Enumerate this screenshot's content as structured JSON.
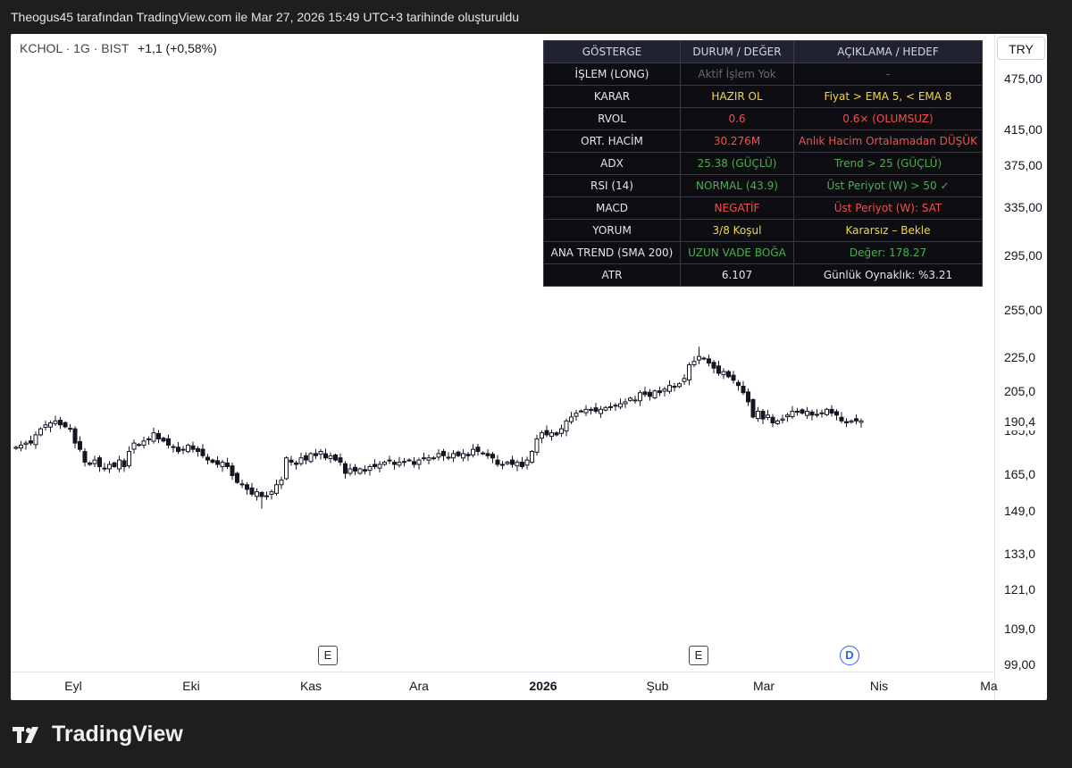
{
  "header": {
    "caption": "Theogus45 tarafından TradingView.com ile Mar 27, 2026 15:49 UTC+3 tarihinde oluşturuldu"
  },
  "symbol": {
    "name": "KCHOL · 1G · BIST",
    "change": "+1,1 (+0,58%)"
  },
  "currency": "TRY",
  "price_axis": [
    "475,00",
    "415,00",
    "375,00",
    "335,00",
    "295,00",
    "255,00",
    "225,0",
    "205,0",
    "185,0",
    "165,0",
    "149,0",
    "133,0",
    "121,0",
    "109,0",
    "99,00"
  ],
  "last_price": "190,4",
  "time_axis": [
    {
      "label": "Eyl",
      "bold": false
    },
    {
      "label": "Eki",
      "bold": false
    },
    {
      "label": "Kas",
      "bold": false
    },
    {
      "label": "Ara",
      "bold": false
    },
    {
      "label": "2026",
      "bold": true
    },
    {
      "label": "Şub",
      "bold": false
    },
    {
      "label": "Mar",
      "bold": false
    },
    {
      "label": "Nis",
      "bold": false
    },
    {
      "label": "Ma",
      "bold": false
    }
  ],
  "event_markers": [
    {
      "type": "earnings",
      "letter": "E"
    },
    {
      "type": "earnings",
      "letter": "E"
    },
    {
      "type": "dividend",
      "letter": "D"
    }
  ],
  "indicator_table": {
    "headers": [
      "GÖSTERGE",
      "DURUM / DEĞER",
      "AÇIKLAMA / HEDEF"
    ],
    "rows": [
      {
        "label": "İŞLEM (LONG)",
        "value": "Aktif İşlem Yok",
        "value_color": "#6b6b6b",
        "note": "-",
        "note_color": "#6b6b6b"
      },
      {
        "label": "KARAR",
        "value": "HAZIR OL",
        "value_color": "#f5d742",
        "note": "Fiyat > EMA 5, < EMA 8",
        "note_color": "#f5d742"
      },
      {
        "label": "RVOL",
        "value": "0.6",
        "value_color": "#f0524f",
        "note": "0.6× (OLUMSUZ)",
        "note_color": "#f0524f"
      },
      {
        "label": "ORT. HACİM",
        "value": "30.276M",
        "value_color": "#f0524f",
        "note": "Anlık Hacim Ortalamadan DÜŞÜK",
        "note_color": "#f0524f"
      },
      {
        "label": "ADX",
        "value": "25.38 (GÜÇLÜ)",
        "value_color": "#4caf50",
        "note": "Trend > 25 (GÜÇLÜ)",
        "note_color": "#4caf50"
      },
      {
        "label": "RSI (14)",
        "value": "NORMAL (43.9)",
        "value_color": "#4caf50",
        "note": "Üst Periyot (W) > 50 ✓",
        "note_color": "#4caf50"
      },
      {
        "label": "MACD",
        "value": "NEGATİF",
        "value_color": "#f0524f",
        "note": "Üst Periyot (W): SAT",
        "note_color": "#f0524f"
      },
      {
        "label": "YORUM",
        "value": "3/8 Koşul",
        "value_color": "#f5d742",
        "note": "Kararsız – Bekle",
        "note_color": "#f5d742"
      },
      {
        "label": "ANA TREND (SMA 200)",
        "value": "UZUN VADE BOĞA",
        "value_color": "#4caf50",
        "note": "Değer: 178.27",
        "note_color": "#4caf50"
      },
      {
        "label": "ATR",
        "value": "6.107",
        "value_color": "#e6e6e6",
        "note": "Günlük Oynaklık: %3.21",
        "note_color": "#e6e6e6"
      }
    ]
  },
  "chart_data": {
    "type": "candlestick",
    "symbol": "KCHOL",
    "interval": "1G",
    "exchange": "BIST",
    "y_scale": "log",
    "close": [
      177,
      178,
      179,
      179,
      183,
      186,
      188,
      189,
      190,
      188,
      187,
      186,
      179,
      176,
      170,
      169,
      171,
      168,
      167,
      169,
      168,
      171,
      168,
      175,
      179,
      178,
      180,
      181,
      184,
      181,
      180,
      178,
      177,
      175,
      176,
      178,
      176,
      175,
      173,
      171,
      170,
      169,
      170,
      168,
      164,
      161,
      160,
      158,
      156,
      157,
      155,
      155,
      157,
      160,
      162,
      172,
      170,
      169,
      172,
      171,
      174,
      173,
      175,
      172,
      173,
      171,
      170,
      165,
      167,
      166,
      167,
      166,
      168,
      168,
      169,
      170,
      171,
      169,
      170,
      170,
      171,
      169,
      171,
      172,
      172,
      172,
      174,
      173,
      172,
      174,
      173,
      174,
      173,
      176,
      175,
      174,
      173,
      172,
      169,
      169,
      170,
      169,
      170,
      168,
      171,
      175,
      181,
      184,
      183,
      184,
      183,
      186,
      190,
      192,
      194,
      195,
      196,
      196,
      195,
      196,
      197,
      197,
      198,
      199,
      200,
      202,
      201,
      205,
      204,
      203,
      206,
      205,
      207,
      209,
      208,
      210,
      213,
      221,
      223,
      226,
      225,
      222,
      219,
      216,
      217,
      214,
      212,
      209,
      205,
      200,
      192,
      195,
      191,
      193,
      189,
      190,
      191,
      193,
      195,
      195,
      194,
      195,
      193,
      193,
      194,
      196,
      194,
      193,
      190,
      189,
      190,
      190,
      190
    ],
    "low_marks": [
      {
        "label": "min",
        "value": 150
      }
    ],
    "high_marks": [
      {
        "label": "max",
        "value": 232
      }
    ]
  },
  "footer": {
    "brand": "TradingView"
  }
}
